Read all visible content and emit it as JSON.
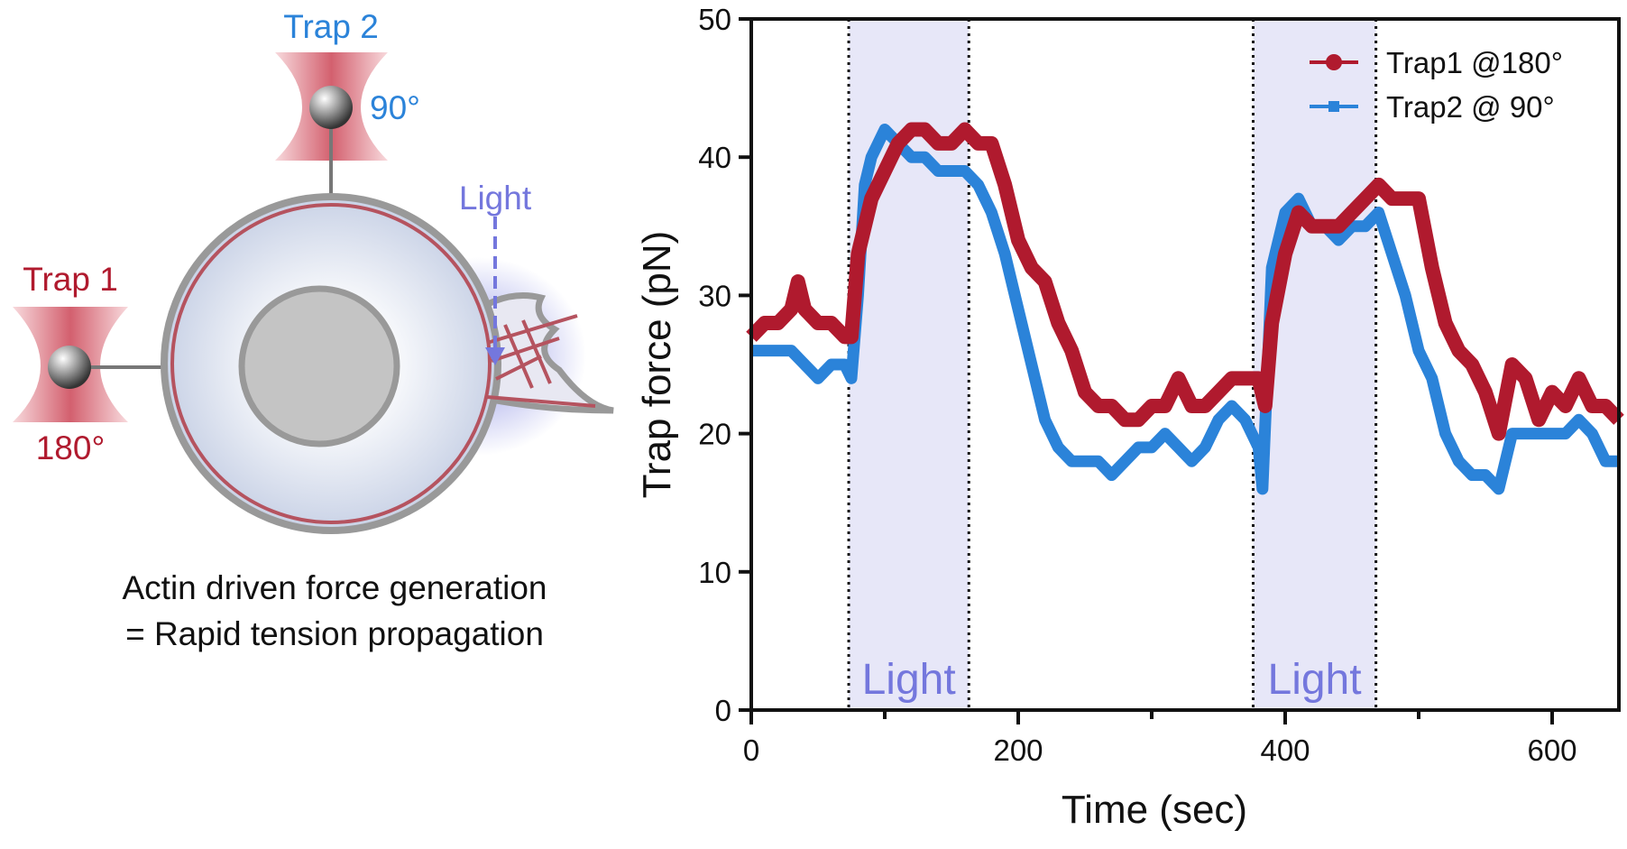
{
  "diagram": {
    "trap2_label": "Trap 2",
    "trap2_angle": "90°",
    "trap1_label": "Trap 1",
    "trap1_angle": "180°",
    "light_label": "Light",
    "caption_line1": "Actin driven force generation",
    "caption_line2": "= Rapid tension propagation"
  },
  "colors": {
    "trap1": "#b01a2e",
    "trap2": "#2b83d9",
    "light": "#7477dd",
    "light_band": "#e7e7f8"
  },
  "chart_data": {
    "type": "line",
    "xlabel": "Time (sec)",
    "ylabel": "Trap force (pN)",
    "xlim": [
      0,
      650
    ],
    "ylim": [
      0,
      50
    ],
    "xticks": [
      0,
      200,
      400,
      600
    ],
    "yticks": [
      0,
      10,
      20,
      30,
      40,
      50
    ],
    "legend": "top-right",
    "light_periods": [
      {
        "start": 73,
        "end": 163,
        "label": "Light"
      },
      {
        "start": 376,
        "end": 468,
        "label": "Light"
      }
    ],
    "series": [
      {
        "name": "Trap1 @180°",
        "marker": "circle",
        "x": [
          0,
          10,
          20,
          30,
          35,
          40,
          50,
          60,
          70,
          75,
          80,
          90,
          100,
          110,
          120,
          130,
          140,
          150,
          160,
          170,
          180,
          190,
          200,
          210,
          220,
          230,
          240,
          250,
          260,
          270,
          280,
          290,
          300,
          310,
          320,
          330,
          340,
          350,
          360,
          370,
          380,
          385,
          390,
          400,
          410,
          420,
          430,
          440,
          450,
          460,
          470,
          480,
          490,
          500,
          510,
          520,
          530,
          540,
          550,
          560,
          570,
          580,
          590,
          600,
          610,
          620,
          630,
          640,
          650
        ],
        "y": [
          27,
          28,
          28,
          29,
          31,
          29,
          28,
          28,
          27,
          27,
          33,
          37,
          39,
          41,
          42,
          42,
          41,
          41,
          42,
          41,
          41,
          38,
          34,
          32,
          31,
          28,
          26,
          23,
          22,
          22,
          21,
          21,
          22,
          22,
          24,
          22,
          22,
          23,
          24,
          24,
          24,
          22,
          28,
          33,
          36,
          35,
          35,
          35,
          36,
          37,
          38,
          37,
          37,
          37,
          32,
          28,
          26,
          25,
          23,
          20,
          25,
          24,
          21,
          23,
          22,
          24,
          22,
          22,
          21
        ]
      },
      {
        "name": "Trap2 @ 90°",
        "marker": "square",
        "x": [
          0,
          10,
          20,
          30,
          40,
          50,
          60,
          70,
          75,
          80,
          85,
          90,
          100,
          110,
          120,
          130,
          140,
          150,
          160,
          170,
          180,
          190,
          200,
          210,
          220,
          230,
          240,
          250,
          260,
          270,
          280,
          290,
          300,
          310,
          320,
          330,
          340,
          350,
          360,
          370,
          380,
          383,
          390,
          400,
          410,
          420,
          430,
          440,
          450,
          460,
          470,
          480,
          490,
          500,
          510,
          520,
          530,
          540,
          550,
          560,
          570,
          580,
          590,
          600,
          610,
          620,
          630,
          640,
          650
        ],
        "y": [
          26,
          26,
          26,
          26,
          25,
          24,
          25,
          25,
          24,
          30,
          38,
          40,
          42,
          41,
          40,
          40,
          39,
          39,
          39,
          38,
          36,
          33,
          29,
          25,
          21,
          19,
          18,
          18,
          18,
          17,
          18,
          19,
          19,
          20,
          19,
          18,
          19,
          21,
          22,
          21,
          19,
          16,
          32,
          36,
          37,
          35,
          35,
          34,
          35,
          35,
          36,
          33,
          30,
          26,
          24,
          20,
          18,
          17,
          17,
          16,
          20,
          20,
          20,
          20,
          20,
          21,
          20,
          18,
          18
        ]
      }
    ]
  }
}
